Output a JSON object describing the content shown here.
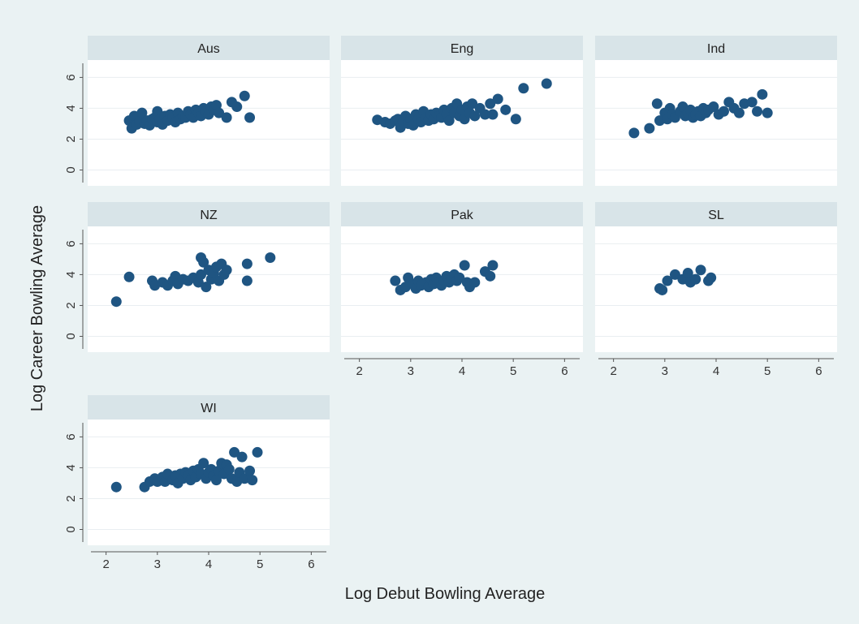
{
  "chart_data": {
    "type": "scatter",
    "xlabel": "Log Debut Bowling Average",
    "ylabel": "Log Career Bowling Average",
    "xlim": [
      1.8,
      6.2
    ],
    "ylim": [
      -0.5,
      6.6
    ],
    "xticks": [
      2,
      3,
      4,
      5,
      6
    ],
    "yticks": [
      0,
      2,
      4,
      6
    ],
    "grid": true,
    "colors": {
      "background": "#eaf2f3",
      "plot": "#ffffff",
      "strip": "#d8e4e8",
      "marker": "#1f5582",
      "grid": "#e9eef1"
    },
    "panels": [
      {
        "name": "Aus",
        "points": [
          [
            2.45,
            3.2
          ],
          [
            2.5,
            2.7
          ],
          [
            2.55,
            3.5
          ],
          [
            2.6,
            2.95
          ],
          [
            2.65,
            3.15
          ],
          [
            2.7,
            3.7
          ],
          [
            2.75,
            3.0
          ],
          [
            2.8,
            3.2
          ],
          [
            2.85,
            2.9
          ],
          [
            2.9,
            3.3
          ],
          [
            2.95,
            3.4
          ],
          [
            3.0,
            3.1
          ],
          [
            3.0,
            3.8
          ],
          [
            3.05,
            3.3
          ],
          [
            3.1,
            2.95
          ],
          [
            3.15,
            3.5
          ],
          [
            3.2,
            3.2
          ],
          [
            3.25,
            3.6
          ],
          [
            3.3,
            3.4
          ],
          [
            3.35,
            3.1
          ],
          [
            3.4,
            3.7
          ],
          [
            3.45,
            3.3
          ],
          [
            3.5,
            3.5
          ],
          [
            3.55,
            3.4
          ],
          [
            3.6,
            3.8
          ],
          [
            3.65,
            3.6
          ],
          [
            3.7,
            3.4
          ],
          [
            3.75,
            3.9
          ],
          [
            3.8,
            3.7
          ],
          [
            3.85,
            3.5
          ],
          [
            3.9,
            4.0
          ],
          [
            3.95,
            3.8
          ],
          [
            4.0,
            3.6
          ],
          [
            4.05,
            4.1
          ],
          [
            4.1,
            3.9
          ],
          [
            4.15,
            4.2
          ],
          [
            4.2,
            3.7
          ],
          [
            4.35,
            3.4
          ],
          [
            4.45,
            4.4
          ],
          [
            4.55,
            4.1
          ],
          [
            4.7,
            4.8
          ],
          [
            4.8,
            3.4
          ]
        ]
      },
      {
        "name": "Eng",
        "points": [
          [
            2.35,
            3.25
          ],
          [
            2.5,
            3.1
          ],
          [
            2.6,
            3.0
          ],
          [
            2.7,
            3.2
          ],
          [
            2.75,
            3.3
          ],
          [
            2.8,
            2.75
          ],
          [
            2.85,
            3.1
          ],
          [
            2.9,
            3.5
          ],
          [
            2.95,
            3.0
          ],
          [
            3.0,
            3.3
          ],
          [
            3.05,
            2.9
          ],
          [
            3.1,
            3.6
          ],
          [
            3.15,
            3.3
          ],
          [
            3.2,
            3.1
          ],
          [
            3.25,
            3.8
          ],
          [
            3.3,
            3.4
          ],
          [
            3.35,
            3.2
          ],
          [
            3.4,
            3.6
          ],
          [
            3.45,
            3.3
          ],
          [
            3.5,
            3.7
          ],
          [
            3.55,
            3.5
          ],
          [
            3.6,
            3.4
          ],
          [
            3.65,
            3.9
          ],
          [
            3.7,
            3.6
          ],
          [
            3.75,
            3.2
          ],
          [
            3.8,
            4.0
          ],
          [
            3.85,
            3.7
          ],
          [
            3.9,
            4.3
          ],
          [
            3.95,
            3.5
          ],
          [
            4.0,
            3.9
          ],
          [
            4.05,
            3.3
          ],
          [
            4.1,
            4.1
          ],
          [
            4.15,
            3.7
          ],
          [
            4.2,
            4.3
          ],
          [
            4.25,
            3.5
          ],
          [
            4.35,
            4.0
          ],
          [
            4.45,
            3.6
          ],
          [
            4.55,
            4.3
          ],
          [
            4.6,
            3.6
          ],
          [
            4.7,
            4.6
          ],
          [
            4.85,
            3.9
          ],
          [
            5.05,
            3.3
          ],
          [
            5.2,
            5.3
          ],
          [
            5.65,
            5.6
          ]
        ]
      },
      {
        "name": "Ind",
        "points": [
          [
            2.4,
            2.4
          ],
          [
            2.7,
            2.7
          ],
          [
            2.85,
            4.3
          ],
          [
            2.9,
            3.2
          ],
          [
            3.0,
            3.7
          ],
          [
            3.05,
            3.3
          ],
          [
            3.1,
            4.0
          ],
          [
            3.15,
            3.6
          ],
          [
            3.2,
            3.4
          ],
          [
            3.3,
            3.8
          ],
          [
            3.35,
            4.1
          ],
          [
            3.4,
            3.5
          ],
          [
            3.45,
            3.7
          ],
          [
            3.5,
            3.9
          ],
          [
            3.55,
            3.4
          ],
          [
            3.6,
            3.6
          ],
          [
            3.65,
            3.8
          ],
          [
            3.7,
            3.5
          ],
          [
            3.75,
            4.0
          ],
          [
            3.8,
            3.7
          ],
          [
            3.85,
            3.9
          ],
          [
            3.95,
            4.1
          ],
          [
            4.05,
            3.6
          ],
          [
            4.15,
            3.8
          ],
          [
            4.25,
            4.4
          ],
          [
            4.35,
            4.0
          ],
          [
            4.45,
            3.7
          ],
          [
            4.55,
            4.3
          ],
          [
            4.7,
            4.4
          ],
          [
            4.8,
            3.8
          ],
          [
            4.9,
            4.9
          ],
          [
            5.0,
            3.7
          ]
        ]
      },
      {
        "name": "NZ",
        "points": [
          [
            2.2,
            2.25
          ],
          [
            2.45,
            3.85
          ],
          [
            2.9,
            3.6
          ],
          [
            2.95,
            3.3
          ],
          [
            3.1,
            3.5
          ],
          [
            3.2,
            3.3
          ],
          [
            3.3,
            3.6
          ],
          [
            3.35,
            3.9
          ],
          [
            3.4,
            3.4
          ],
          [
            3.5,
            3.7
          ],
          [
            3.6,
            3.6
          ],
          [
            3.7,
            3.8
          ],
          [
            3.8,
            3.5
          ],
          [
            3.85,
            4.0
          ],
          [
            3.85,
            5.1
          ],
          [
            3.9,
            4.8
          ],
          [
            3.95,
            3.2
          ],
          [
            4.0,
            4.3
          ],
          [
            4.05,
            3.7
          ],
          [
            4.1,
            4.1
          ],
          [
            4.15,
            4.5
          ],
          [
            4.2,
            3.6
          ],
          [
            4.25,
            4.7
          ],
          [
            4.3,
            4.0
          ],
          [
            4.35,
            4.3
          ],
          [
            4.75,
            4.7
          ],
          [
            4.75,
            3.6
          ],
          [
            5.2,
            5.1
          ]
        ]
      },
      {
        "name": "Pak",
        "points": [
          [
            2.7,
            3.6
          ],
          [
            2.8,
            3.0
          ],
          [
            2.9,
            3.2
          ],
          [
            2.95,
            3.8
          ],
          [
            3.05,
            3.4
          ],
          [
            3.1,
            3.1
          ],
          [
            3.15,
            3.6
          ],
          [
            3.2,
            3.3
          ],
          [
            3.3,
            3.5
          ],
          [
            3.35,
            3.2
          ],
          [
            3.4,
            3.7
          ],
          [
            3.45,
            3.4
          ],
          [
            3.5,
            3.8
          ],
          [
            3.55,
            3.5
          ],
          [
            3.6,
            3.3
          ],
          [
            3.65,
            3.6
          ],
          [
            3.7,
            3.9
          ],
          [
            3.75,
            3.5
          ],
          [
            3.8,
            3.7
          ],
          [
            3.85,
            4.0
          ],
          [
            3.9,
            3.6
          ],
          [
            3.95,
            3.8
          ],
          [
            4.05,
            4.6
          ],
          [
            4.1,
            3.5
          ],
          [
            4.15,
            3.2
          ],
          [
            4.25,
            3.5
          ],
          [
            4.45,
            4.2
          ],
          [
            4.55,
            3.9
          ],
          [
            4.6,
            4.6
          ]
        ]
      },
      {
        "name": "SL",
        "points": [
          [
            2.9,
            3.1
          ],
          [
            2.95,
            3.0
          ],
          [
            3.05,
            3.6
          ],
          [
            3.2,
            4.0
          ],
          [
            3.35,
            3.7
          ],
          [
            3.45,
            4.1
          ],
          [
            3.5,
            3.5
          ],
          [
            3.6,
            3.7
          ],
          [
            3.7,
            4.3
          ],
          [
            3.85,
            3.6
          ],
          [
            3.9,
            3.8
          ]
        ]
      },
      {
        "name": "WI",
        "points": [
          [
            2.2,
            2.75
          ],
          [
            2.75,
            2.75
          ],
          [
            2.85,
            3.1
          ],
          [
            2.95,
            3.3
          ],
          [
            3.0,
            3.1
          ],
          [
            3.1,
            3.4
          ],
          [
            3.15,
            3.1
          ],
          [
            3.2,
            3.6
          ],
          [
            3.3,
            3.2
          ],
          [
            3.35,
            3.5
          ],
          [
            3.4,
            3.0
          ],
          [
            3.45,
            3.6
          ],
          [
            3.5,
            3.3
          ],
          [
            3.55,
            3.7
          ],
          [
            3.6,
            3.5
          ],
          [
            3.65,
            3.2
          ],
          [
            3.7,
            3.8
          ],
          [
            3.75,
            3.4
          ],
          [
            3.8,
            3.9
          ],
          [
            3.85,
            3.6
          ],
          [
            3.9,
            4.3
          ],
          [
            3.95,
            3.3
          ],
          [
            4.0,
            3.7
          ],
          [
            4.05,
            3.9
          ],
          [
            4.1,
            3.5
          ],
          [
            4.15,
            3.2
          ],
          [
            4.2,
            3.8
          ],
          [
            4.25,
            4.3
          ],
          [
            4.3,
            3.6
          ],
          [
            4.35,
            4.2
          ],
          [
            4.4,
            3.9
          ],
          [
            4.45,
            3.3
          ],
          [
            4.5,
            5.0
          ],
          [
            4.55,
            3.1
          ],
          [
            4.6,
            3.7
          ],
          [
            4.65,
            4.7
          ],
          [
            4.7,
            3.3
          ],
          [
            4.8,
            3.8
          ],
          [
            4.85,
            3.2
          ],
          [
            4.95,
            5.0
          ]
        ]
      }
    ]
  }
}
